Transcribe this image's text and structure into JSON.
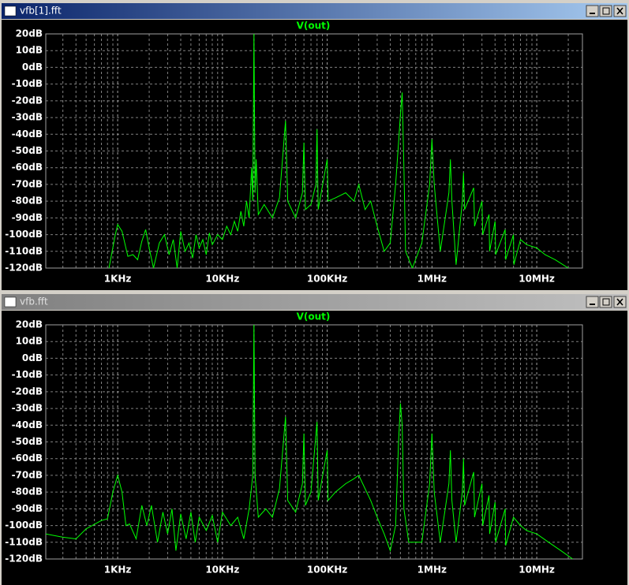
{
  "windows": [
    {
      "title": "vfb[1].fft"
    },
    {
      "title": "vfb.fft"
    }
  ],
  "chart_data": [
    {
      "type": "line",
      "xscale": "log",
      "grid": true,
      "x": [
        826,
        950,
        1000,
        1100,
        1250,
        1400,
        1550,
        1700,
        1850,
        2000,
        2200,
        2500,
        2800,
        3100,
        3400,
        3700,
        4000,
        4400,
        4800,
        5200,
        5600,
        6000,
        6500,
        7000,
        7500,
        8000,
        9000,
        10000,
        11000,
        12000,
        13000,
        14000,
        15000,
        16000,
        17000,
        18000,
        19000,
        19500,
        20000,
        20500,
        21000,
        22000,
        25000,
        30000,
        35000,
        40000,
        42000,
        50000,
        58000,
        60000,
        62000,
        70000,
        78000,
        80000,
        82000,
        100000,
        102000,
        120000,
        150000,
        180000,
        200000,
        230000,
        260000,
        300000,
        350000,
        400000,
        450000,
        480000,
        500000,
        520000,
        540000,
        560000,
        650000,
        800000,
        950000,
        1000000,
        1050000,
        1200000,
        1450000,
        1500000,
        1550000,
        1700000,
        1950000,
        2000000,
        2050000,
        2500000,
        2550000,
        3000000,
        3050000,
        3500000,
        3550000,
        4000000,
        4050000,
        5000000,
        5050000,
        6000000,
        6050000,
        7000000,
        8000000,
        10000000,
        12000000,
        15000000,
        20000000
      ],
      "series": [
        {
          "name": "V(out)",
          "color": "#00ff00",
          "values": [
            -120,
            -100,
            -94,
            -98,
            -113,
            -112,
            -115,
            -104,
            -97,
            -108,
            -120,
            -105,
            -100,
            -112,
            -103,
            -120,
            -98,
            -110,
            -105,
            -114,
            -100,
            -108,
            -103,
            -112,
            -99,
            -106,
            -100,
            -103,
            -95,
            -100,
            -92,
            -98,
            -86,
            -95,
            -80,
            -90,
            -60,
            -80,
            20,
            -75,
            -55,
            -88,
            -82,
            -90,
            -78,
            -32,
            -80,
            -90,
            -75,
            -45,
            -85,
            -82,
            -70,
            -37,
            -85,
            -55,
            -80,
            -78,
            -75,
            -80,
            -70,
            -85,
            -80,
            -95,
            -110,
            -105,
            -70,
            -45,
            -28,
            -15,
            -60,
            -110,
            -120,
            -105,
            -70,
            -43,
            -70,
            -110,
            -75,
            -55,
            -80,
            -118,
            -80,
            -63,
            -85,
            -72,
            -95,
            -80,
            -100,
            -88,
            -110,
            -92,
            -112,
            -97,
            -115,
            -100,
            -118,
            -103,
            -106,
            -108,
            -112,
            -115,
            -120
          ]
        }
      ],
      "xlim": [
        206,
        27300000
      ],
      "ylim": [
        -120,
        20
      ],
      "xticks": [
        {
          "value": 1000,
          "label": "1KHz"
        },
        {
          "value": 10000,
          "label": "10KHz"
        },
        {
          "value": 100000,
          "label": "100KHz"
        },
        {
          "value": 1000000,
          "label": "1MHz"
        },
        {
          "value": 10000000,
          "label": "10MHz"
        }
      ],
      "xminorticks": [
        300,
        400,
        500,
        600,
        700,
        800,
        900,
        2000,
        3000,
        4000,
        5000,
        6000,
        7000,
        8000,
        9000,
        20000,
        30000,
        40000,
        50000,
        60000,
        70000,
        80000,
        90000,
        200000,
        300000,
        400000,
        500000,
        600000,
        700000,
        800000,
        900000,
        2000000,
        3000000,
        4000000,
        5000000,
        6000000,
        7000000,
        8000000,
        9000000,
        20000000
      ],
      "yticks": [
        {
          "value": 20,
          "label": "20dB"
        },
        {
          "value": 10,
          "label": "10dB"
        },
        {
          "value": 0,
          "label": "0dB"
        },
        {
          "value": -10,
          "label": "-10dB"
        },
        {
          "value": -20,
          "label": "-20dB"
        },
        {
          "value": -30,
          "label": "-30dB"
        },
        {
          "value": -40,
          "label": "-40dB"
        },
        {
          "value": -50,
          "label": "-50dB"
        },
        {
          "value": -60,
          "label": "-60dB"
        },
        {
          "value": -70,
          "label": "-70dB"
        },
        {
          "value": -80,
          "label": "-80dB"
        },
        {
          "value": -90,
          "label": "-90dB"
        },
        {
          "value": -100,
          "label": "-100dB"
        },
        {
          "value": -110,
          "label": "-110dB"
        },
        {
          "value": -120,
          "label": "-120dB"
        }
      ]
    },
    {
      "type": "line",
      "xscale": "log",
      "grid": true,
      "x": [
        206,
        300,
        400,
        500,
        700,
        800,
        900,
        1000,
        1100,
        1200,
        1300,
        1500,
        1700,
        1900,
        2100,
        2400,
        2700,
        3000,
        3300,
        3600,
        4000,
        4500,
        5000,
        5500,
        6000,
        7000,
        8000,
        9000,
        10000,
        12000,
        14000,
        16000,
        18000,
        19500,
        20000,
        20500,
        22000,
        26000,
        30000,
        35000,
        40000,
        42000,
        50000,
        58000,
        60000,
        62000,
        70000,
        80000,
        82000,
        100000,
        102000,
        120000,
        150000,
        180000,
        200000,
        230000,
        260000,
        300000,
        350000,
        400000,
        450000,
        480000,
        500000,
        520000,
        540000,
        600000,
        800000,
        950000,
        1000000,
        1050000,
        1200000,
        1450000,
        1500000,
        1550000,
        1700000,
        1950000,
        2000000,
        2050000,
        2500000,
        2550000,
        3000000,
        3050000,
        3500000,
        3550000,
        4000000,
        4050000,
        5000000,
        5050000,
        6000000,
        7000000,
        8000000,
        10000000,
        13000000,
        17000000,
        22000000
      ],
      "series": [
        {
          "name": "V(out)",
          "color": "#00ff00",
          "values": [
            -105,
            -107,
            -108,
            -102,
            -97,
            -96,
            -80,
            -70,
            -80,
            -100,
            -99,
            -108,
            -88,
            -100,
            -88,
            -110,
            -92,
            -105,
            -90,
            -115,
            -93,
            -108,
            -92,
            -110,
            -95,
            -103,
            -94,
            -110,
            -92,
            -100,
            -95,
            -108,
            -90,
            -70,
            20,
            -70,
            -95,
            -90,
            -95,
            -78,
            -35,
            -85,
            -92,
            -75,
            -45,
            -88,
            -80,
            -38,
            -85,
            -55,
            -85,
            -80,
            -75,
            -72,
            -70,
            -78,
            -85,
            -95,
            -105,
            -115,
            -100,
            -50,
            -27,
            -40,
            -90,
            -110,
            -110,
            -75,
            -45,
            -80,
            -110,
            -75,
            -55,
            -85,
            -110,
            -80,
            -60,
            -88,
            -68,
            -95,
            -75,
            -100,
            -82,
            -105,
            -86,
            -110,
            -90,
            -112,
            -95,
            -100,
            -103,
            -105,
            -110,
            -115,
            -120
          ]
        }
      ],
      "xlim": [
        206,
        27300000
      ],
      "ylim": [
        -120,
        20
      ],
      "xticks": [
        {
          "value": 1000,
          "label": "1KHz"
        },
        {
          "value": 10000,
          "label": "10KHz"
        },
        {
          "value": 100000,
          "label": "100KHz"
        },
        {
          "value": 1000000,
          "label": "1MHz"
        },
        {
          "value": 10000000,
          "label": "10MHz"
        }
      ],
      "xminorticks": [
        300,
        400,
        500,
        600,
        700,
        800,
        900,
        2000,
        3000,
        4000,
        5000,
        6000,
        7000,
        8000,
        9000,
        20000,
        30000,
        40000,
        50000,
        60000,
        70000,
        80000,
        90000,
        200000,
        300000,
        400000,
        500000,
        600000,
        700000,
        800000,
        900000,
        2000000,
        3000000,
        4000000,
        5000000,
        6000000,
        7000000,
        8000000,
        9000000,
        20000000
      ],
      "yticks": [
        {
          "value": 20,
          "label": "20dB"
        },
        {
          "value": 10,
          "label": "10dB"
        },
        {
          "value": 0,
          "label": "0dB"
        },
        {
          "value": -10,
          "label": "-10dB"
        },
        {
          "value": -20,
          "label": "-20dB"
        },
        {
          "value": -30,
          "label": "-30dB"
        },
        {
          "value": -40,
          "label": "-40dB"
        },
        {
          "value": -50,
          "label": "-50dB"
        },
        {
          "value": -60,
          "label": "-60dB"
        },
        {
          "value": -70,
          "label": "-70dB"
        },
        {
          "value": -80,
          "label": "-80dB"
        },
        {
          "value": -90,
          "label": "-90dB"
        },
        {
          "value": -100,
          "label": "-100dB"
        },
        {
          "value": -110,
          "label": "-110dB"
        },
        {
          "value": -120,
          "label": "-120dB"
        }
      ]
    }
  ]
}
